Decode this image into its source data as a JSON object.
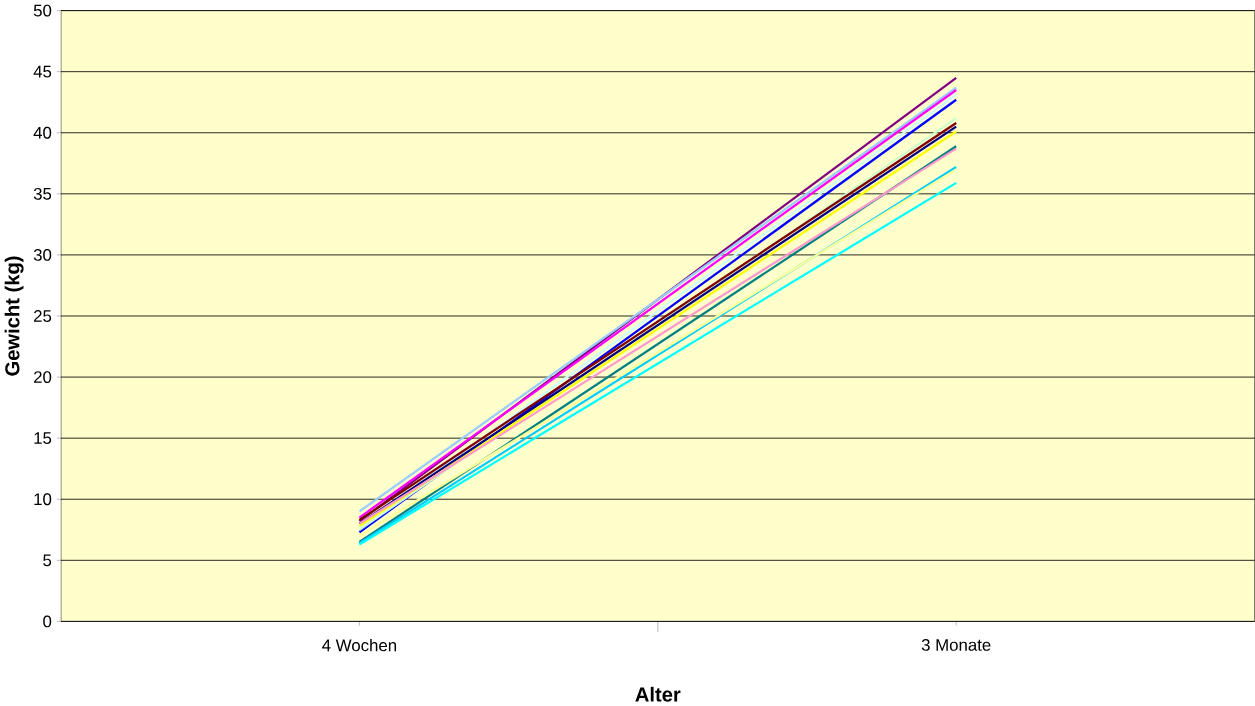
{
  "chart_data": {
    "type": "line",
    "xlabel": "Alter",
    "ylabel": "Gewicht (kg)",
    "categories": [
      "4 Wochen",
      "3 Monate"
    ],
    "ylim": [
      0,
      50
    ],
    "yticks": [
      0,
      5,
      10,
      15,
      20,
      25,
      30,
      35,
      40,
      45,
      50
    ],
    "grid": "y",
    "marker": "none",
    "line_style": "solid",
    "series": [
      {
        "color": "#800080",
        "values": [
          8.2,
          44.5
        ]
      },
      {
        "color": "#99ccff",
        "values": [
          9.0,
          43.7
        ]
      },
      {
        "color": "#ff00ff",
        "values": [
          8.5,
          43.5
        ]
      },
      {
        "color": "#ccffff",
        "values": [
          7.7,
          43.1
        ]
      },
      {
        "color": "#0000ff",
        "values": [
          7.3,
          42.7
        ]
      },
      {
        "color": "#ccffcc",
        "values": [
          7.5,
          41.2
        ]
      },
      {
        "color": "#800000",
        "values": [
          8.3,
          40.8
        ]
      },
      {
        "color": "#000080",
        "values": [
          8.0,
          40.5
        ]
      },
      {
        "color": "#ffff00",
        "values": [
          7.8,
          40.1
        ]
      },
      {
        "color": "#008080",
        "values": [
          6.5,
          38.9
        ]
      },
      {
        "color": "#ff99cc",
        "values": [
          8.0,
          38.7
        ]
      },
      {
        "color": "#00ccff",
        "values": [
          6.4,
          37.2
        ]
      },
      {
        "color": "#ffff99",
        "values": [
          7.0,
          37.0
        ]
      },
      {
        "color": "#00ffff",
        "values": [
          6.3,
          35.9
        ]
      }
    ]
  }
}
